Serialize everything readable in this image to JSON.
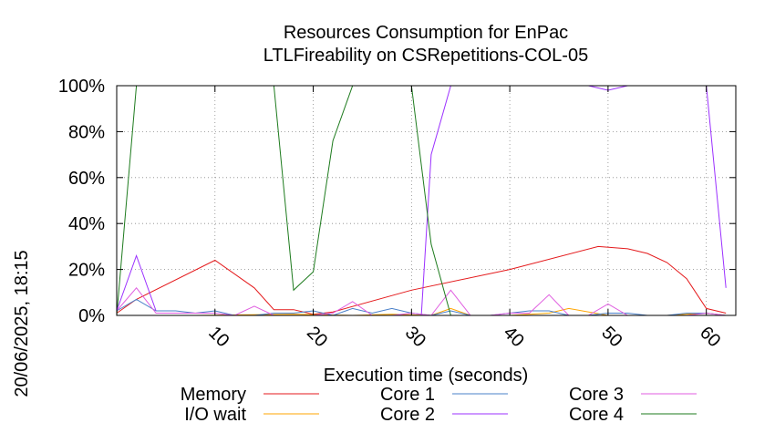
{
  "chart_data": {
    "type": "line",
    "title": [
      "Resources Consumption for EnPac",
      "LTLFireability on CSRepetitions-COL-05"
    ],
    "xlabel": "Execution time (seconds)",
    "ylabel": "",
    "side_label": "20/06/2025, 18:15",
    "xlim": [
      0,
      63
    ],
    "ylim": [
      0,
      100
    ],
    "xticks": [
      10,
      20,
      30,
      40,
      50,
      60
    ],
    "xtick_labels": [
      "10",
      "20",
      "30",
      "40",
      "50",
      "60"
    ],
    "yticks": [
      0,
      20,
      40,
      60,
      80,
      100
    ],
    "ytick_labels": [
      "0%",
      "20%",
      "40%",
      "60%",
      "80%",
      "100%"
    ],
    "grid": true,
    "legend_position": "bottom",
    "series": [
      {
        "name": "Memory",
        "color": "#e41a1c",
        "x": [
          0,
          2,
          10,
          14,
          16,
          18,
          20,
          22,
          30,
          40,
          49,
          52,
          54,
          56,
          58,
          60,
          62
        ],
        "y": [
          1,
          7,
          24,
          12,
          2.5,
          2.5,
          0.5,
          1.5,
          11,
          20,
          30,
          29,
          27,
          23,
          16,
          3,
          1
        ]
      },
      {
        "name": "I/O wait",
        "color": "#ffa500",
        "x": [
          0,
          8,
          18,
          24,
          28,
          32,
          34,
          36,
          40,
          44,
          46,
          50,
          56,
          60,
          62
        ],
        "y": [
          0,
          0,
          0.5,
          0,
          0.5,
          0,
          3,
          0,
          0,
          1,
          3,
          0,
          0,
          1,
          0
        ]
      },
      {
        "name": "Core 1",
        "color": "#4a80c9",
        "x": [
          0,
          2,
          4,
          6,
          8,
          10,
          12,
          14,
          16,
          18,
          20,
          22,
          24,
          26,
          28,
          30,
          32,
          34,
          36,
          38,
          40,
          42,
          44,
          46,
          48,
          50,
          52,
          54,
          56,
          58,
          60,
          62
        ],
        "y": [
          2,
          7,
          2,
          2,
          1,
          2,
          0,
          0,
          1,
          1,
          2,
          0,
          3,
          1,
          3,
          1,
          0,
          2,
          0,
          0,
          1,
          2,
          2,
          0,
          0,
          1,
          1,
          0,
          0,
          1,
          1,
          0
        ]
      },
      {
        "name": "Core 2",
        "color": "#9b30ff",
        "x": [
          0,
          2,
          4,
          8,
          12,
          16,
          20,
          24,
          28,
          30,
          31,
          32,
          34,
          44,
          48,
          50,
          52,
          54,
          58,
          60,
          62
        ],
        "y": [
          0,
          0,
          0,
          0,
          0,
          0,
          0,
          0,
          0,
          0,
          0,
          70,
          100,
          100,
          100,
          98,
          100,
          100,
          100,
          100,
          12
        ]
      },
      {
        "name": "Core 3",
        "color": "#e05ee0",
        "x": [
          0,
          2,
          4,
          6,
          8,
          10,
          12,
          14,
          16,
          18,
          20,
          22,
          24,
          26,
          28,
          30,
          32,
          34,
          36,
          38,
          40,
          42,
          44,
          46,
          48,
          50,
          52,
          54,
          56,
          58,
          60,
          62
        ],
        "y": [
          2,
          12,
          1,
          1,
          1,
          1,
          0,
          4,
          0,
          0,
          0,
          1,
          6,
          0,
          0,
          1,
          0,
          11,
          0,
          0,
          1,
          1,
          9,
          0,
          0,
          5,
          0,
          0,
          0,
          0,
          1,
          0
        ]
      },
      {
        "name": "Core 4",
        "color": "#1e7b1e",
        "x": [
          0,
          2,
          4,
          8,
          12,
          16,
          18,
          20,
          22,
          24,
          28,
          30,
          32,
          34,
          36,
          40,
          50,
          62
        ],
        "y": [
          0,
          100,
          100,
          100,
          100,
          100,
          11,
          19,
          76,
          100,
          100,
          100,
          31,
          0,
          0,
          0,
          0,
          0
        ]
      }
    ],
    "extra_spikes": {
      "core2_early": {
        "x": [
          0,
          2,
          4
        ],
        "y": [
          2,
          26,
          2
        ]
      }
    }
  }
}
